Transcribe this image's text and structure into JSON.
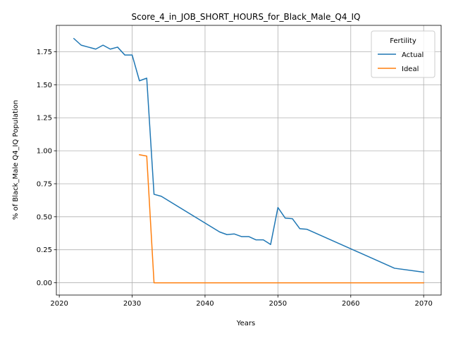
{
  "chart_data": {
    "type": "line",
    "title": "Score_4_in_JOB_SHORT_HOURS_for_Black_Male_Q4_IQ",
    "xlabel": "Years",
    "ylabel": "% of Black_Male Q4_IQ Population",
    "xlim": [
      2019.6,
      2072.4
    ],
    "ylim": [
      -0.093,
      1.95
    ],
    "xticks": [
      2020,
      2030,
      2040,
      2050,
      2060,
      2070
    ],
    "yticks": [
      0.0,
      0.25,
      0.5,
      0.75,
      1.0,
      1.25,
      1.5,
      1.75
    ],
    "ytick_labels": [
      "0.00",
      "0.25",
      "0.50",
      "0.75",
      "1.00",
      "1.25",
      "1.50",
      "1.75"
    ],
    "grid": true,
    "legend": {
      "title": "Fertility",
      "placement": "top-right"
    },
    "series": [
      {
        "name": "Actual",
        "color": "#1f77b4",
        "x": [
          2022,
          2023,
          2024,
          2025,
          2026,
          2027,
          2028,
          2029,
          2030,
          2031,
          2032,
          2033,
          2034,
          2042,
          2043,
          2044,
          2045,
          2046,
          2047,
          2048,
          2049,
          2050,
          2051,
          2052,
          2053,
          2054,
          2066,
          2070
        ],
        "y": [
          1.85,
          1.8,
          1.785,
          1.77,
          1.8,
          1.77,
          1.785,
          1.725,
          1.725,
          1.53,
          1.55,
          0.67,
          0.655,
          0.385,
          0.365,
          0.37,
          0.35,
          0.35,
          0.325,
          0.325,
          0.29,
          0.57,
          0.49,
          0.485,
          0.41,
          0.405,
          0.11,
          0.08
        ]
      },
      {
        "name": "Ideal",
        "color": "#ff7f0e",
        "x": [
          2031,
          2032,
          2033,
          2034,
          2040,
          2050,
          2060,
          2070
        ],
        "y": [
          0.97,
          0.96,
          0.0,
          0.0,
          0.0,
          0.0,
          0.0,
          0.0
        ]
      }
    ]
  }
}
